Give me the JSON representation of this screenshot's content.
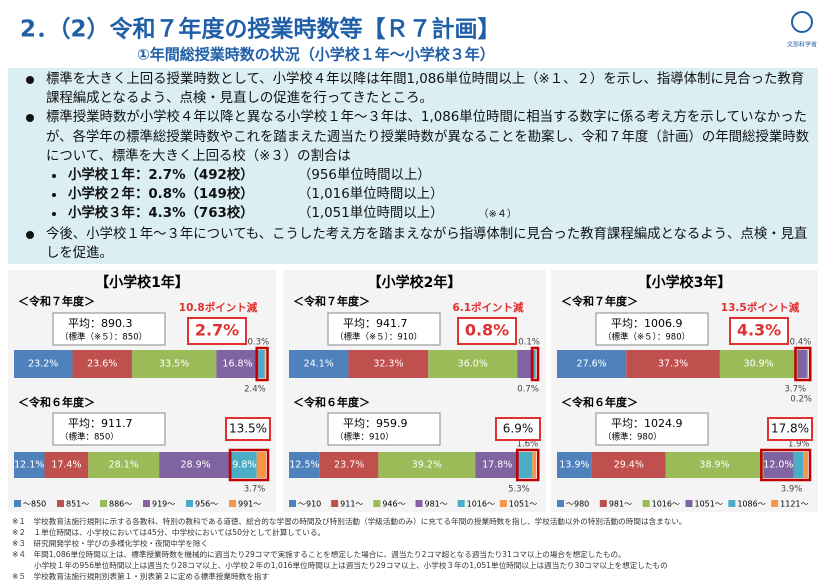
{
  "header": {
    "title": "2．（2）令和７年度の授業時数等【Ｒ７計画】",
    "subtitle": "①年間総授業時数の状況（小学校１年～小学校３年）",
    "logo": "文部科学省"
  },
  "summary": {
    "bullets": [
      "標準を大きく上回る授業時数として、小学校４年以降は年間1,086単位時間以上（※１、２）を示し、指導体制に見合った教育課程編成となるよう、点検・見直しの促進を行ってきたところ。",
      "標準授業時数が小学校４年以降と異なる小学校１年～３年は、1,086単位時間に相当する数字に係る考え方を示していなかったが、各学年の標準総授業時数やこれを踏まえた週当たり授業時数が異なることを勘案し、令和７年度（計画）の年間総授業時数について、標準を大きく上回る校（※３）の割合は",
      "今後、小学校１年～３年についても、こうした考え方を踏まえながら指導体制に見合った教育課程編成となるよう、点検・見直しを促進。"
    ],
    "items": [
      {
        "label": "小学校１年：2.7%（492校）",
        "threshold": "（956単位時間以上）"
      },
      {
        "label": "小学校２年：0.8%（149校）",
        "threshold": "（1,016単位時間以上）"
      },
      {
        "label": "小学校３年：4.3%（763校）",
        "threshold": "（1,051単位時間以上）",
        "note": "（※４）"
      }
    ]
  },
  "chart_data": [
    {
      "type": "bar",
      "orientation": "horizontal",
      "stacked": true,
      "title": "【小学校1年】",
      "categories": [
        "＜令和７年度＞",
        "＜令和６年度＞"
      ],
      "averages": [
        "平均：890.3",
        "平均：911.7"
      ],
      "standards": [
        "（標準（※５）：850）",
        "（標準：850）"
      ],
      "callout": "10.8ポイント減",
      "highlight_labels": [
        "2.7%",
        "13.5%"
      ],
      "highlight_from": [
        4,
        4
      ],
      "xlim": [
        0,
        100
      ],
      "series": [
        {
          "name": "～850",
          "color": "#4f81bd",
          "values": [
            23.2,
            12.1
          ],
          "value_labels": [
            "23.2%",
            "12.1%"
          ]
        },
        {
          "name": "851～",
          "color": "#c0504d",
          "values": [
            23.6,
            17.4
          ],
          "value_labels": [
            "23.6%",
            "17.4%"
          ]
        },
        {
          "name": "886～",
          "color": "#9bbb59",
          "values": [
            33.5,
            28.1
          ],
          "value_labels": [
            "33.5%",
            "28.1%"
          ]
        },
        {
          "name": "919～",
          "color": "#8064a2",
          "values": [
            16.8,
            28.9
          ],
          "value_labels": [
            "16.8%",
            "28.9%"
          ]
        },
        {
          "name": "956～",
          "color": "#4bacc6",
          "values": [
            2.4,
            9.8
          ],
          "value_labels": [
            "2.4%",
            "9.8%"
          ]
        },
        {
          "name": "991～",
          "color": "#f79646",
          "values": [
            0.3,
            3.7
          ],
          "value_labels": [
            "0.3%",
            "3.7%"
          ]
        }
      ]
    },
    {
      "type": "bar",
      "orientation": "horizontal",
      "stacked": true,
      "title": "【小学校2年】",
      "categories": [
        "＜令和７年度＞",
        "＜令和６年度＞"
      ],
      "averages": [
        "平均：941.7",
        "平均：959.9"
      ],
      "standards": [
        "（標準（※５）：910）",
        "（標準：910）"
      ],
      "callout": "6.1ポイント減",
      "highlight_labels": [
        "0.8%",
        "6.9%"
      ],
      "highlight_from": [
        4,
        4
      ],
      "xlim": [
        0,
        100
      ],
      "series": [
        {
          "name": "～910",
          "color": "#4f81bd",
          "values": [
            24.1,
            12.5
          ],
          "value_labels": [
            "24.1%",
            "12.5%"
          ]
        },
        {
          "name": "911～",
          "color": "#c0504d",
          "values": [
            32.3,
            23.7
          ],
          "value_labels": [
            "32.3%",
            "23.7%"
          ]
        },
        {
          "name": "946～",
          "color": "#9bbb59",
          "values": [
            36.0,
            39.2
          ],
          "value_labels": [
            "36.0%",
            "39.2%"
          ]
        },
        {
          "name": "981～",
          "color": "#8064a2",
          "values": [
            6.8,
            17.8
          ],
          "value_labels": [
            null,
            "17.8%"
          ]
        },
        {
          "name": "1016～",
          "color": "#4bacc6",
          "values": [
            0.7,
            5.3
          ],
          "value_labels": [
            "0.7%",
            "5.3%"
          ]
        },
        {
          "name": "1051～",
          "color": "#f79646",
          "values": [
            0.1,
            1.6
          ],
          "value_labels": [
            "0.1%",
            "1.6%"
          ]
        }
      ]
    },
    {
      "type": "bar",
      "orientation": "horizontal",
      "stacked": true,
      "title": "【小学校3年】",
      "categories": [
        "＜令和７年度＞",
        "＜令和６年度＞"
      ],
      "averages": [
        "平均：1006.9",
        "平均：1024.9"
      ],
      "standards": [
        "（標準（※５）：980）",
        "（標準：980）"
      ],
      "callout": "13.5ポイント減",
      "highlight_labels": [
        "4.3%",
        "17.8%"
      ],
      "highlight_from": [
        3,
        3
      ],
      "xlim": [
        0,
        100
      ],
      "series": [
        {
          "name": "～980",
          "color": "#4f81bd",
          "values": [
            27.6,
            13.9
          ],
          "value_labels": [
            "27.6%",
            "13.9%"
          ]
        },
        {
          "name": "981～",
          "color": "#c0504d",
          "values": [
            37.3,
            29.4
          ],
          "value_labels": [
            "37.3%",
            "29.4%"
          ]
        },
        {
          "name": "1016～",
          "color": "#9bbb59",
          "values": [
            30.9,
            38.9
          ],
          "value_labels": [
            "30.9%",
            "38.9%"
          ]
        },
        {
          "name": "1051～",
          "color": "#8064a2",
          "values": [
            3.7,
            12.0
          ],
          "value_labels": [
            "3.7%",
            "12.0%"
          ]
        },
        {
          "name": "1086～",
          "color": "#4bacc6",
          "values": [
            0.4,
            3.9
          ],
          "value_labels": [
            "0.4%",
            "3.9%"
          ]
        },
        {
          "name": "1121～",
          "color": "#f79646",
          "values": [
            0.2,
            1.9
          ],
          "value_labels": [
            "0.2%",
            "1.9%"
          ]
        }
      ]
    }
  ],
  "footnotes": [
    "※１　学校教育法施行規則に示する各教科、特別の教科である道徳、総合的な学習の時間及び特別活動（学級活動のみ）に充てる年間の授業時数を指し、学校活動以外の特別活動の時間は含まない。",
    "※２　１単位時間は、小学校においては45分、中学校においては50分として計算している。",
    "※３　研究開発学校・学びの多様化学校・夜間中学を除く",
    "※４　年間1,086単位時間以上は、標準授業時数を機械的に週当たり29コマで実施することを想定した場合に、週当たり2コマ超となる週当たり31コマ以上の場合を想定したもの。",
    "小学校１年の956単位時間以上は週当たり28コマ以上、小学校２年の1,016単位時間以上は週当たり29コマ以上、小学校３年の1,051単位時間以上は週当たり30コマ以上を想定したもの",
    "※５　学校教育法施行規則別表第１・別表第２に定める標準授業時数を指す"
  ]
}
